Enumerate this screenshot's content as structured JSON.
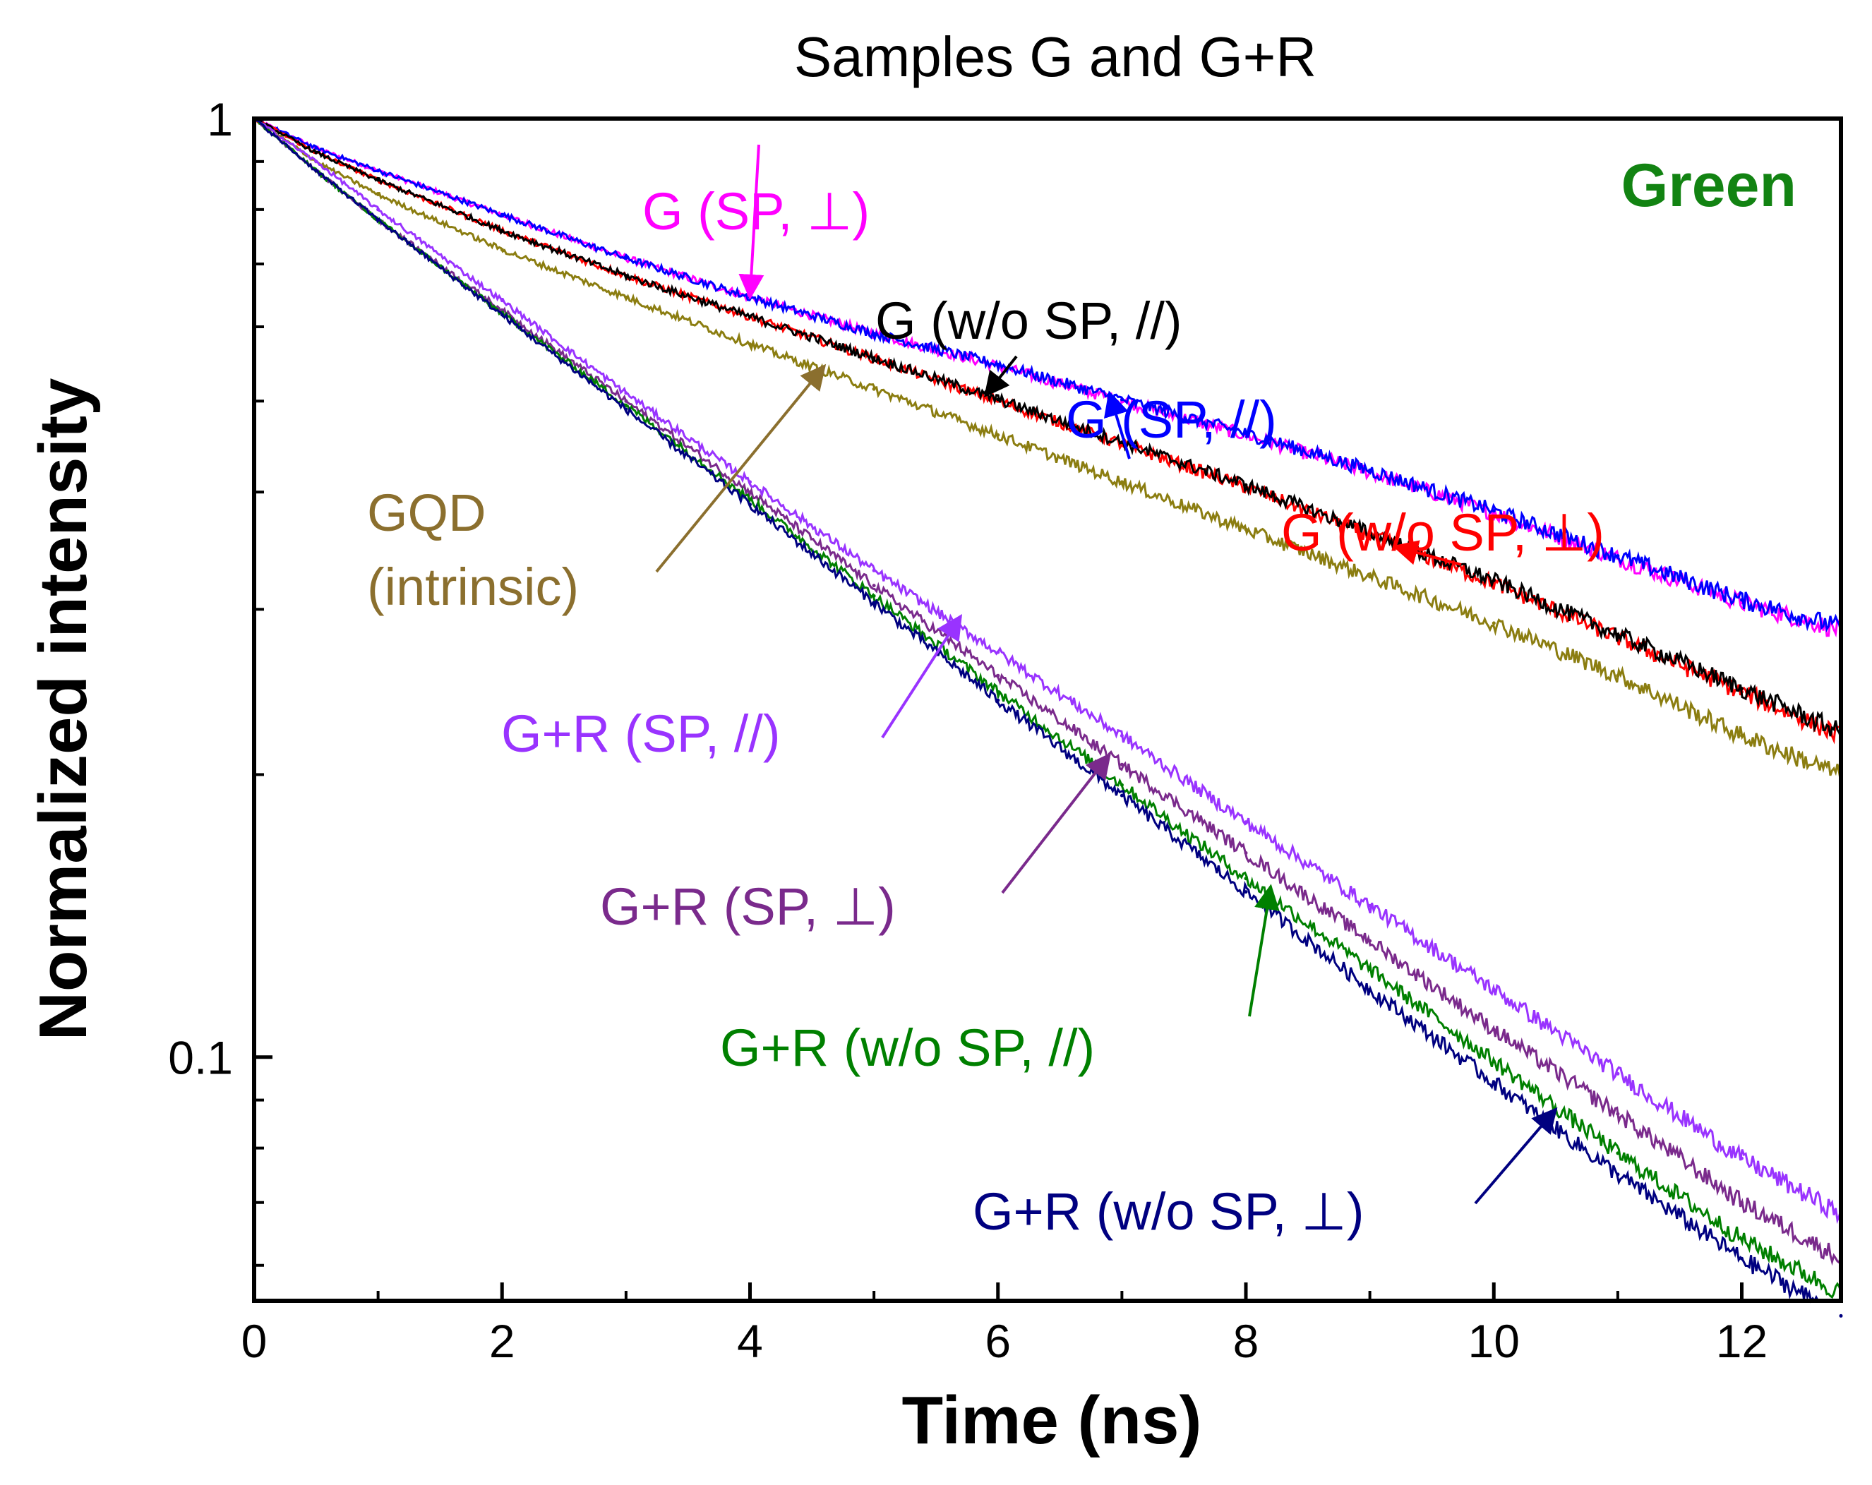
{
  "chart_data": {
    "type": "line",
    "title": "Samples G and G+R",
    "xlabel": "Time (ns)",
    "ylabel": "Normalized intensity",
    "xlim": [
      0,
      12.8
    ],
    "ylim": [
      0.055,
      1.0
    ],
    "yscale": "log",
    "grid": false,
    "x_ticks": [
      0,
      2,
      4,
      6,
      8,
      10,
      12
    ],
    "x_tick_labels": [
      "0",
      "2",
      "4",
      "6",
      "8",
      "10",
      "12"
    ],
    "y_ticks": [
      0.1,
      1
    ],
    "y_tick_labels": [
      "0.1",
      "1"
    ],
    "panel_label": {
      "text": "Green",
      "color": "#128312"
    },
    "series": [
      {
        "name": "G (SP, ⊥)",
        "color": "#FF00FF",
        "x": [
          0,
          0.5,
          1,
          2,
          3,
          4,
          5,
          6,
          7,
          8,
          9,
          10,
          11,
          12,
          12.8
        ],
        "y": [
          1.0,
          0.93,
          0.88,
          0.79,
          0.71,
          0.645,
          0.59,
          0.545,
          0.5,
          0.46,
          0.42,
          0.38,
          0.34,
          0.305,
          0.285
        ]
      },
      {
        "name": "G (SP, //)",
        "color": "#0000FF",
        "x": [
          0,
          0.5,
          1,
          2,
          3,
          4,
          5,
          6,
          7,
          8,
          9,
          10,
          11,
          12,
          12.8
        ],
        "y": [
          1.0,
          0.93,
          0.88,
          0.79,
          0.71,
          0.645,
          0.59,
          0.547,
          0.502,
          0.462,
          0.422,
          0.382,
          0.342,
          0.307,
          0.287
        ]
      },
      {
        "name": "G (w/o SP, ⊥)",
        "color": "#FF0000",
        "x": [
          0,
          0.5,
          1,
          2,
          3,
          4,
          5,
          6,
          7,
          8,
          9,
          10,
          11,
          12,
          12.8
        ],
        "y": [
          1.0,
          0.92,
          0.86,
          0.76,
          0.68,
          0.615,
          0.555,
          0.5,
          0.45,
          0.405,
          0.36,
          0.32,
          0.28,
          0.245,
          0.22
        ]
      },
      {
        "name": "G (w/o SP, //)",
        "color": "#000000",
        "x": [
          0,
          0.5,
          1,
          2,
          3,
          4,
          5,
          6,
          7,
          8,
          9,
          10,
          11,
          12,
          12.8
        ],
        "y": [
          1.0,
          0.92,
          0.86,
          0.76,
          0.68,
          0.615,
          0.556,
          0.502,
          0.452,
          0.407,
          0.362,
          0.322,
          0.282,
          0.247,
          0.222
        ]
      },
      {
        "name": "GQD (intrinsic)",
        "color": "#8B7D10",
        "x": [
          0,
          0.5,
          1,
          2,
          3,
          4,
          5,
          6,
          7,
          8,
          9,
          10,
          11,
          12,
          12.8
        ],
        "y": [
          1.0,
          0.9,
          0.83,
          0.725,
          0.645,
          0.575,
          0.515,
          0.46,
          0.41,
          0.365,
          0.325,
          0.29,
          0.255,
          0.22,
          0.2
        ]
      },
      {
        "name": "G+R (SP, //)",
        "color": "#9933FF",
        "x": [
          0,
          0.5,
          1,
          2,
          3,
          4,
          5,
          6,
          7,
          8,
          9,
          10,
          11,
          12,
          12.8
        ],
        "y": [
          1.0,
          0.9,
          0.8,
          0.64,
          0.51,
          0.41,
          0.33,
          0.27,
          0.22,
          0.178,
          0.145,
          0.118,
          0.096,
          0.078,
          0.068
        ]
      },
      {
        "name": "G+R (SP, ⊥)",
        "color": "#7A2A8C",
        "x": [
          0,
          0.5,
          1,
          2,
          3,
          4,
          5,
          6,
          7,
          8,
          9,
          10,
          11,
          12,
          12.8
        ],
        "y": [
          1.0,
          0.88,
          0.78,
          0.625,
          0.5,
          0.4,
          0.318,
          0.255,
          0.205,
          0.165,
          0.133,
          0.107,
          0.087,
          0.07,
          0.061
        ]
      },
      {
        "name": "G+R (w/o SP, //)",
        "color": "#008000",
        "x": [
          0,
          0.5,
          1,
          2,
          3,
          4,
          5,
          6,
          7,
          8,
          9,
          10,
          11,
          12,
          12.8
        ],
        "y": [
          1.0,
          0.88,
          0.78,
          0.62,
          0.495,
          0.393,
          0.31,
          0.245,
          0.195,
          0.155,
          0.124,
          0.099,
          0.079,
          0.064,
          0.056
        ]
      },
      {
        "name": "G+R (w/o SP, ⊥)",
        "color": "#000080",
        "x": [
          0,
          0.5,
          1,
          2,
          3,
          4,
          5,
          6,
          7,
          8,
          9,
          10,
          11,
          12,
          12.8
        ],
        "y": [
          1.0,
          0.88,
          0.78,
          0.618,
          0.49,
          0.388,
          0.305,
          0.24,
          0.19,
          0.15,
          0.118,
          0.094,
          0.075,
          0.061,
          0.053
        ]
      }
    ],
    "annotations": [
      {
        "lines": [
          "G (SP, ⊥)"
        ],
        "color": "#FF00FF",
        "arrow_to": {
          "x": 4.0,
          "y": 0.645
        }
      },
      {
        "lines": [
          "G (w/o SP, //)"
        ],
        "color": "#000000",
        "arrow_to": {
          "x": 5.9,
          "y": 0.507
        }
      },
      {
        "lines": [
          "G (SP, //)"
        ],
        "color": "#0000FF",
        "arrow_to": {
          "x": 6.9,
          "y": 0.51
        }
      },
      {
        "lines": [
          "G (w/o SP, ⊥)"
        ],
        "color": "#FF0000",
        "arrow_to": {
          "x": 9.2,
          "y": 0.35
        }
      },
      {
        "lines": [
          "GQD",
          "(intrinsic)"
        ],
        "color": "#8B6F2E",
        "arrow_to": {
          "x": 4.6,
          "y": 0.545
        }
      },
      {
        "lines": [
          "G+R (SP, //)"
        ],
        "color": "#9933FF",
        "arrow_to": {
          "x": 5.7,
          "y": 0.295
        }
      },
      {
        "lines": [
          "G+R (SP, ⊥)"
        ],
        "color": "#7A2A8C",
        "arrow_to": {
          "x": 6.9,
          "y": 0.21
        }
      },
      {
        "lines": [
          "G+R (w/o SP, //)"
        ],
        "color": "#008000",
        "arrow_to": {
          "x": 8.2,
          "y": 0.152
        }
      },
      {
        "lines": [
          "G+R (w/o SP, ⊥)"
        ],
        "color": "#000080",
        "arrow_to": {
          "x": 10.5,
          "y": 0.088
        }
      }
    ]
  }
}
